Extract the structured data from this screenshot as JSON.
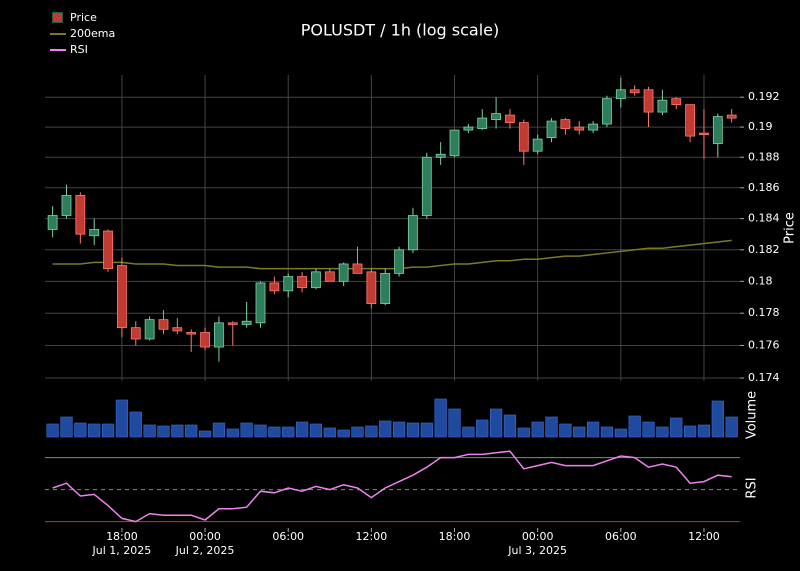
{
  "chart_data": {
    "type": "candlestick",
    "title": "POLUSDT / 1h (log scale)",
    "x": [
      13,
      14,
      15,
      16,
      17,
      18,
      19,
      20,
      21,
      22,
      23,
      24,
      25,
      26,
      27,
      28,
      29,
      30,
      31,
      32,
      33,
      34,
      35,
      36,
      37,
      38,
      39,
      40,
      41,
      42,
      43,
      44,
      45,
      46,
      47,
      48,
      49,
      50,
      51,
      52,
      53,
      54,
      55,
      56,
      57,
      58,
      59,
      60,
      61,
      62
    ],
    "xlim": [
      12.45,
      62.6
    ],
    "xticks": [
      {
        "value": 18,
        "label": "18:00"
      },
      {
        "value": 24,
        "label": "00:00"
      },
      {
        "value": 30,
        "label": "06:00"
      },
      {
        "value": 36,
        "label": "12:00"
      },
      {
        "value": 42,
        "label": "18:00"
      },
      {
        "value": 48,
        "label": "00:00"
      },
      {
        "value": 54,
        "label": "06:00"
      },
      {
        "value": 60,
        "label": "12:00"
      }
    ],
    "date_labels": [
      {
        "value": 18,
        "label": "Jul 1, 2025"
      },
      {
        "value": 24,
        "label": "Jul 2, 2025"
      },
      {
        "value": 48,
        "label": "Jul 3, 2025"
      }
    ],
    "log_scale": true,
    "grid": true,
    "ylabel": "Price",
    "ylim": [
      0.17382,
      0.1935
    ],
    "yticks": [
      0.174,
      0.176,
      0.178,
      0.18,
      0.182,
      0.184,
      0.186,
      0.188,
      0.19,
      0.192
    ],
    "up_color": "#2e7d5b",
    "down_color": "#c23b32",
    "series": [
      {
        "name": "Price",
        "open": [
          0.1833,
          0.1842,
          0.1855,
          0.1829,
          0.1832,
          0.181,
          0.1771,
          0.1764,
          0.1776,
          0.1771,
          0.1768,
          0.1768,
          0.1759,
          0.1774,
          0.1773,
          0.1774,
          0.1799,
          0.1794,
          0.1803,
          0.1796,
          0.1806,
          0.18,
          0.1811,
          0.1806,
          0.1786,
          0.1805,
          0.182,
          0.1842,
          0.188,
          0.1881,
          0.1898,
          0.1899,
          0.1905,
          0.1908,
          0.1903,
          0.1884,
          0.1893,
          0.1905,
          0.19,
          0.1898,
          0.1902,
          0.1919,
          0.1925,
          0.1925,
          0.191,
          0.1919,
          0.1915,
          0.1896,
          0.1889,
          0.1908
        ],
        "high": [
          0.1848,
          0.1862,
          0.1857,
          0.184,
          0.1833,
          0.1815,
          0.1775,
          0.1778,
          0.1782,
          0.1777,
          0.177,
          0.1771,
          0.1778,
          0.1775,
          0.1787,
          0.18,
          0.1803,
          0.1805,
          0.1806,
          0.1808,
          0.1808,
          0.1812,
          0.1822,
          0.1808,
          0.1808,
          0.1822,
          0.1847,
          0.1883,
          0.189,
          0.1898,
          0.1902,
          0.1912,
          0.192,
          0.1912,
          0.1905,
          0.1895,
          0.1906,
          0.1906,
          0.1904,
          0.1904,
          0.1921,
          0.1933,
          0.1928,
          0.1927,
          0.1925,
          0.192,
          0.1915,
          0.1912,
          0.1909,
          0.1912
        ],
        "low": [
          0.1828,
          0.184,
          0.1824,
          0.1823,
          0.1806,
          0.1765,
          0.176,
          0.1763,
          0.1767,
          0.1767,
          0.1756,
          0.1757,
          0.175,
          0.176,
          0.1771,
          0.1771,
          0.1792,
          0.179,
          0.1793,
          0.1795,
          0.18,
          0.1797,
          0.1805,
          0.1783,
          0.1785,
          0.1803,
          0.1818,
          0.184,
          0.1875,
          0.188,
          0.1896,
          0.1898,
          0.1899,
          0.1899,
          0.1875,
          0.1882,
          0.189,
          0.1895,
          0.1895,
          0.1896,
          0.19,
          0.1913,
          0.1921,
          0.19,
          0.1908,
          0.1912,
          0.189,
          0.1879,
          0.188,
          0.1903
        ],
        "close": [
          0.1842,
          0.1855,
          0.183,
          0.1833,
          0.1808,
          0.1771,
          0.1764,
          0.1776,
          0.177,
          0.1769,
          0.1767,
          0.1759,
          0.1774,
          0.1773,
          0.1775,
          0.1799,
          0.1794,
          0.1803,
          0.1796,
          0.1806,
          0.18,
          0.1811,
          0.1805,
          0.1786,
          0.1805,
          0.182,
          0.1842,
          0.188,
          0.1882,
          0.1898,
          0.19,
          0.1906,
          0.1909,
          0.1903,
          0.1884,
          0.1892,
          0.1904,
          0.1899,
          0.1898,
          0.1902,
          0.1919,
          0.1925,
          0.1923,
          0.191,
          0.1918,
          0.1915,
          0.1894,
          0.1895,
          0.1907,
          0.1906
        ]
      },
      {
        "name": "200ema",
        "color": "#7a7a2a",
        "values": [
          0.1811,
          0.1811,
          0.1811,
          0.1812,
          0.1812,
          0.1812,
          0.1811,
          0.1811,
          0.1811,
          0.181,
          0.181,
          0.181,
          0.1809,
          0.1809,
          0.1809,
          0.1808,
          0.1808,
          0.1808,
          0.1808,
          0.1808,
          0.1808,
          0.1808,
          0.1808,
          0.1808,
          0.1808,
          0.1808,
          0.1809,
          0.1809,
          0.181,
          0.1811,
          0.1811,
          0.1812,
          0.1813,
          0.1813,
          0.1814,
          0.1814,
          0.1815,
          0.1816,
          0.1816,
          0.1817,
          0.1818,
          0.1819,
          0.182,
          0.1821,
          0.1821,
          0.1822,
          0.1823,
          0.1824,
          0.1825,
          0.1826
        ]
      }
    ],
    "volume": {
      "ylabel": "Volume",
      "color": "#1f4aa0",
      "ylim": [
        0,
        45
      ],
      "values": [
        13,
        20,
        14,
        13,
        13,
        37,
        25,
        12,
        11,
        12,
        12,
        6,
        14,
        8,
        14,
        12,
        10,
        10,
        15,
        13,
        9,
        7,
        10,
        11,
        16,
        15,
        14,
        14,
        38,
        28,
        10,
        17,
        28,
        22,
        9,
        15,
        20,
        13,
        10,
        15,
        10,
        8,
        21,
        15,
        10,
        19,
        11,
        12,
        36,
        20
      ]
    },
    "rsi": {
      "name": "RSI",
      "ylabel": "RSI",
      "color": "#ee82ee",
      "ylim": [
        26,
        76
      ],
      "values": [
        51,
        54,
        46,
        47,
        40,
        32,
        30,
        35,
        34,
        34,
        34,
        31,
        38,
        38,
        39,
        49,
        48,
        51,
        49,
        52,
        50,
        53,
        51,
        45,
        51,
        55,
        59,
        64,
        70,
        70,
        72,
        72,
        73,
        74,
        63,
        65,
        67,
        65,
        65,
        65,
        68,
        71,
        70,
        64,
        66,
        64,
        54,
        55,
        59,
        58
      ],
      "levels": [
        {
          "value": 70,
          "color": "#4caf50"
        },
        {
          "value": 50,
          "color": "#888888"
        },
        {
          "value": 30,
          "color": "#c0392b"
        }
      ]
    }
  }
}
